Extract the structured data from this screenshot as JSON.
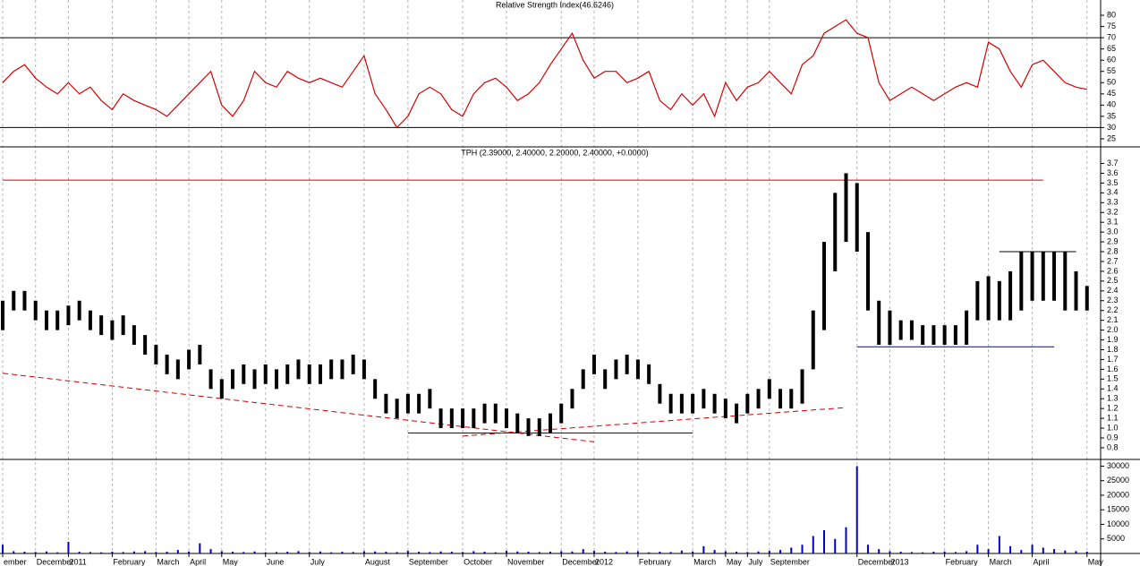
{
  "chart_data": [
    {
      "type": "line",
      "title": "Relative Strength Index(46.6246)",
      "color": "#d40000",
      "ylim": [
        21.8,
        86.8
      ],
      "yticks": [
        25,
        30,
        35,
        40,
        45,
        50,
        55,
        60,
        65,
        70,
        75,
        80
      ],
      "levels": [
        70,
        30
      ],
      "values": [
        50,
        55,
        58,
        52,
        48,
        45,
        50,
        45,
        48,
        42,
        38,
        45,
        42,
        40,
        38,
        35,
        40,
        45,
        50,
        55,
        40,
        35,
        42,
        55,
        50,
        48,
        55,
        52,
        50,
        52,
        50,
        48,
        55,
        62,
        45,
        38,
        30,
        35,
        45,
        48,
        45,
        38,
        35,
        45,
        50,
        52,
        48,
        42,
        45,
        50,
        58,
        65,
        72,
        60,
        52,
        55,
        55,
        50,
        52,
        55,
        42,
        38,
        45,
        40,
        45,
        35,
        50,
        42,
        48,
        50,
        55,
        50,
        45,
        58,
        62,
        72,
        75,
        78,
        72,
        70,
        50,
        42,
        45,
        48,
        45,
        42,
        45,
        48,
        50,
        48,
        68,
        65,
        55,
        48,
        58,
        60,
        55,
        50,
        48,
        47
      ]
    },
    {
      "type": "range",
      "title": "TPH (2.39000, 2.40000, 2.20000, 2.40000, +0.0000)",
      "color": "#000000",
      "ylim": [
        0.69,
        3.86
      ],
      "yticks": [
        0.8,
        0.9,
        {
          "value": 1,
          "label": "1.0"
        },
        1.1,
        1.2,
        1.3,
        1.4,
        1.5,
        1.6,
        1.7,
        1.8,
        1.9,
        {
          "value": 2,
          "label": "2.0"
        },
        2.1,
        2.2,
        2.3,
        2.4,
        2.5,
        2.6,
        2.7,
        2.8,
        2.9,
        {
          "value": 3,
          "label": "3.0"
        },
        3.1,
        3.2,
        3.3,
        3.4,
        3.5,
        3.6,
        3.7
      ],
      "high": [
        2.3,
        2.4,
        2.4,
        2.3,
        2.2,
        2.2,
        2.25,
        2.3,
        2.2,
        2.15,
        2.1,
        2.15,
        2.05,
        1.95,
        1.85,
        1.75,
        1.7,
        1.8,
        1.85,
        1.6,
        1.5,
        1.6,
        1.65,
        1.6,
        1.65,
        1.6,
        1.65,
        1.7,
        1.65,
        1.65,
        1.7,
        1.7,
        1.75,
        1.7,
        1.5,
        1.35,
        1.3,
        1.35,
        1.35,
        1.4,
        1.2,
        1.2,
        1.2,
        1.2,
        1.25,
        1.25,
        1.2,
        1.15,
        1.1,
        1.1,
        1.15,
        1.25,
        1.4,
        1.6,
        1.75,
        1.6,
        1.7,
        1.75,
        1.7,
        1.65,
        1.45,
        1.35,
        1.35,
        1.35,
        1.4,
        1.35,
        1.3,
        1.25,
        1.35,
        1.4,
        1.5,
        1.4,
        1.4,
        1.6,
        2.2,
        2.9,
        3.4,
        3.6,
        3.5,
        3.0,
        2.3,
        2.2,
        2.1,
        2.1,
        2.05,
        2.05,
        2.05,
        2.05,
        2.2,
        2.5,
        2.55,
        2.5,
        2.6,
        2.8,
        2.8,
        2.8,
        2.8,
        2.8,
        2.6,
        2.45
      ],
      "low": [
        2.0,
        2.2,
        2.2,
        2.1,
        2.0,
        2.0,
        2.05,
        2.1,
        2.0,
        1.95,
        1.9,
        1.95,
        1.85,
        1.75,
        1.65,
        1.55,
        1.5,
        1.6,
        1.65,
        1.4,
        1.3,
        1.4,
        1.45,
        1.4,
        1.45,
        1.4,
        1.45,
        1.5,
        1.45,
        1.45,
        1.5,
        1.5,
        1.55,
        1.5,
        1.3,
        1.15,
        1.1,
        1.15,
        1.15,
        1.2,
        1.0,
        1.0,
        1.0,
        1.0,
        1.05,
        1.05,
        1.0,
        0.95,
        0.92,
        0.92,
        0.95,
        1.05,
        1.2,
        1.4,
        1.55,
        1.4,
        1.5,
        1.55,
        1.5,
        1.45,
        1.25,
        1.15,
        1.15,
        1.15,
        1.2,
        1.15,
        1.1,
        1.05,
        1.15,
        1.2,
        1.3,
        1.2,
        1.2,
        1.25,
        1.6,
        2.0,
        2.6,
        2.9,
        2.8,
        2.2,
        1.85,
        1.85,
        1.9,
        1.9,
        1.85,
        1.85,
        1.85,
        1.85,
        1.85,
        2.1,
        2.1,
        2.1,
        2.1,
        2.2,
        2.3,
        2.3,
        2.3,
        2.2,
        2.2,
        2.2
      ],
      "lines": [
        {
          "color": "#d40000",
          "dashed": false,
          "x": [
            0,
            95
          ],
          "y": [
            3.53,
            3.53
          ]
        },
        {
          "color": "#0000cc",
          "dashed": false,
          "x": [
            37,
            63
          ],
          "y": [
            0.95,
            0.95
          ]
        },
        {
          "color": "#0000cc",
          "dashed": false,
          "x": [
            78,
            96
          ],
          "y": [
            1.83,
            1.83
          ]
        },
        {
          "color": "#000000",
          "dashed": false,
          "x": [
            91,
            98
          ],
          "y": [
            2.8,
            2.8
          ]
        },
        {
          "color": "#d40000",
          "dashed": true,
          "x": [
            0,
            54
          ],
          "y": [
            1.56,
            0.86
          ]
        },
        {
          "color": "#d40000",
          "dashed": true,
          "x": [
            42,
            77
          ],
          "y": [
            0.92,
            1.21
          ]
        }
      ]
    },
    {
      "type": "bar",
      "color": "#0000cc",
      "ylim": [
        0,
        32000
      ],
      "yticks": [
        5000,
        10000,
        15000,
        20000,
        25000,
        30000
      ],
      "categories": [
        "ember",
        null,
        null,
        "December",
        null,
        null,
        "2011",
        null,
        null,
        null,
        "February",
        null,
        null,
        null,
        "March",
        null,
        null,
        "April",
        null,
        null,
        "May",
        null,
        null,
        null,
        "June",
        null,
        null,
        null,
        "July",
        null,
        null,
        null,
        null,
        "August",
        null,
        null,
        null,
        "September",
        null,
        null,
        null,
        null,
        "October",
        null,
        null,
        null,
        "November",
        null,
        null,
        null,
        null,
        "December",
        null,
        null,
        "2012",
        null,
        null,
        null,
        "February",
        null,
        null,
        null,
        null,
        "March",
        null,
        null,
        "May",
        null,
        "July",
        null,
        "September",
        null,
        null,
        null,
        null,
        null,
        null,
        null,
        "December",
        null,
        null,
        "2013",
        null,
        null,
        null,
        null,
        "February",
        null,
        null,
        null,
        "March",
        null,
        null,
        null,
        "April",
        null,
        null,
        null,
        null,
        "May"
      ],
      "values": [
        3000,
        800,
        600,
        500,
        700,
        400,
        4000,
        600,
        500,
        400,
        600,
        500,
        700,
        800,
        500,
        600,
        1200,
        700,
        3500,
        1500,
        800,
        600,
        500,
        700,
        400,
        500,
        600,
        800,
        500,
        700,
        400,
        600,
        500,
        800,
        700,
        600,
        500,
        900,
        600,
        500,
        700,
        600,
        500,
        800,
        600,
        400,
        900,
        700,
        600,
        500,
        600,
        800,
        700,
        1500,
        900,
        600,
        500,
        700,
        800,
        400,
        600,
        500,
        1000,
        700,
        2500,
        1200,
        800,
        600,
        500,
        700,
        900,
        1200,
        2000,
        3000,
        6000,
        8000,
        5000,
        9000,
        30000,
        3000,
        1500,
        800,
        600,
        500,
        400,
        600,
        700,
        500,
        800,
        3000,
        1500,
        6000,
        2500,
        1200,
        3000,
        2000,
        1500,
        1000,
        800,
        600
      ]
    }
  ]
}
